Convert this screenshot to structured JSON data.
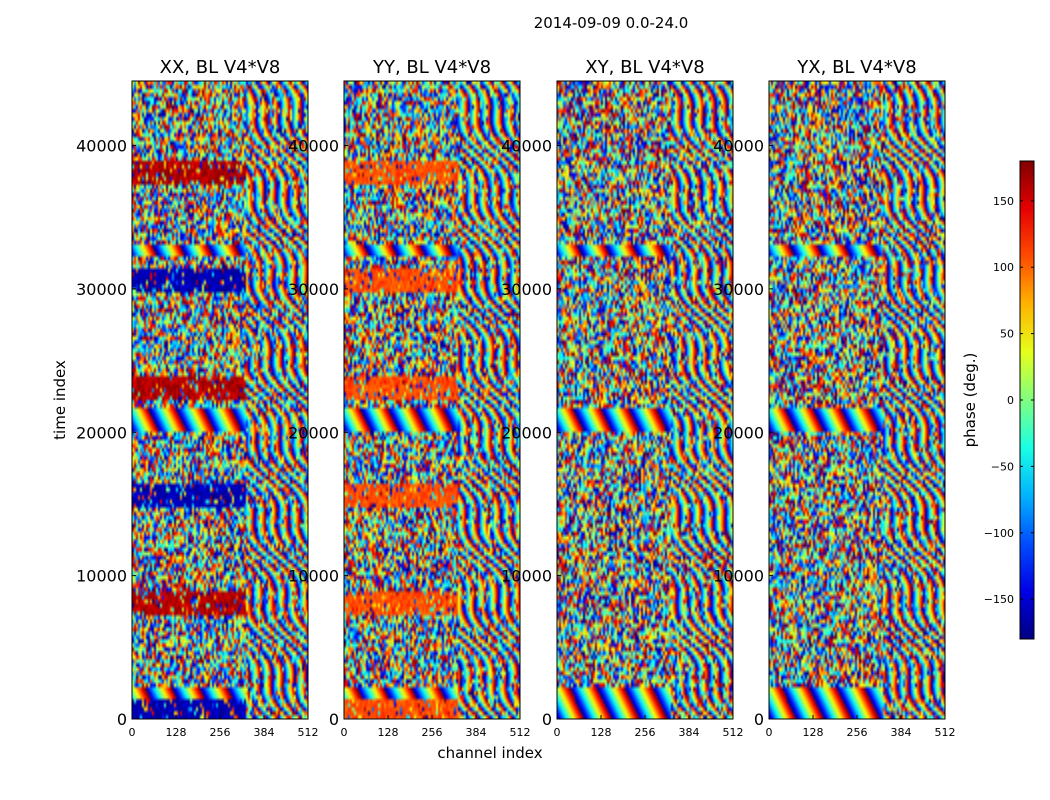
{
  "figure_title": "2014-09-09 0.0-24.0",
  "chart_data": {
    "type": "heatmap",
    "title": "2014-09-09 0.0-24.0",
    "xlabel": "channel index",
    "ylabel": "time index",
    "xlim": [
      0,
      512
    ],
    "ylim": [
      0,
      44500
    ],
    "x_ticks": [
      0,
      128,
      256,
      384,
      512
    ],
    "y_ticks": [
      0,
      10000,
      20000,
      30000,
      40000
    ],
    "panels": [
      {
        "title": "XX, BL V4*V8",
        "mode": "xx"
      },
      {
        "title": "YY, BL V4*V8",
        "mode": "yy"
      },
      {
        "title": "XY, BL V4*V8",
        "mode": "xy"
      },
      {
        "title": "YX, BL V4*V8",
        "mode": "yx"
      }
    ],
    "colorbar": {
      "label": "phase (deg.)",
      "range": [
        -180,
        180
      ],
      "ticks": [
        -150,
        -100,
        -50,
        0,
        50,
        100,
        150
      ],
      "colormap": "jet"
    }
  }
}
